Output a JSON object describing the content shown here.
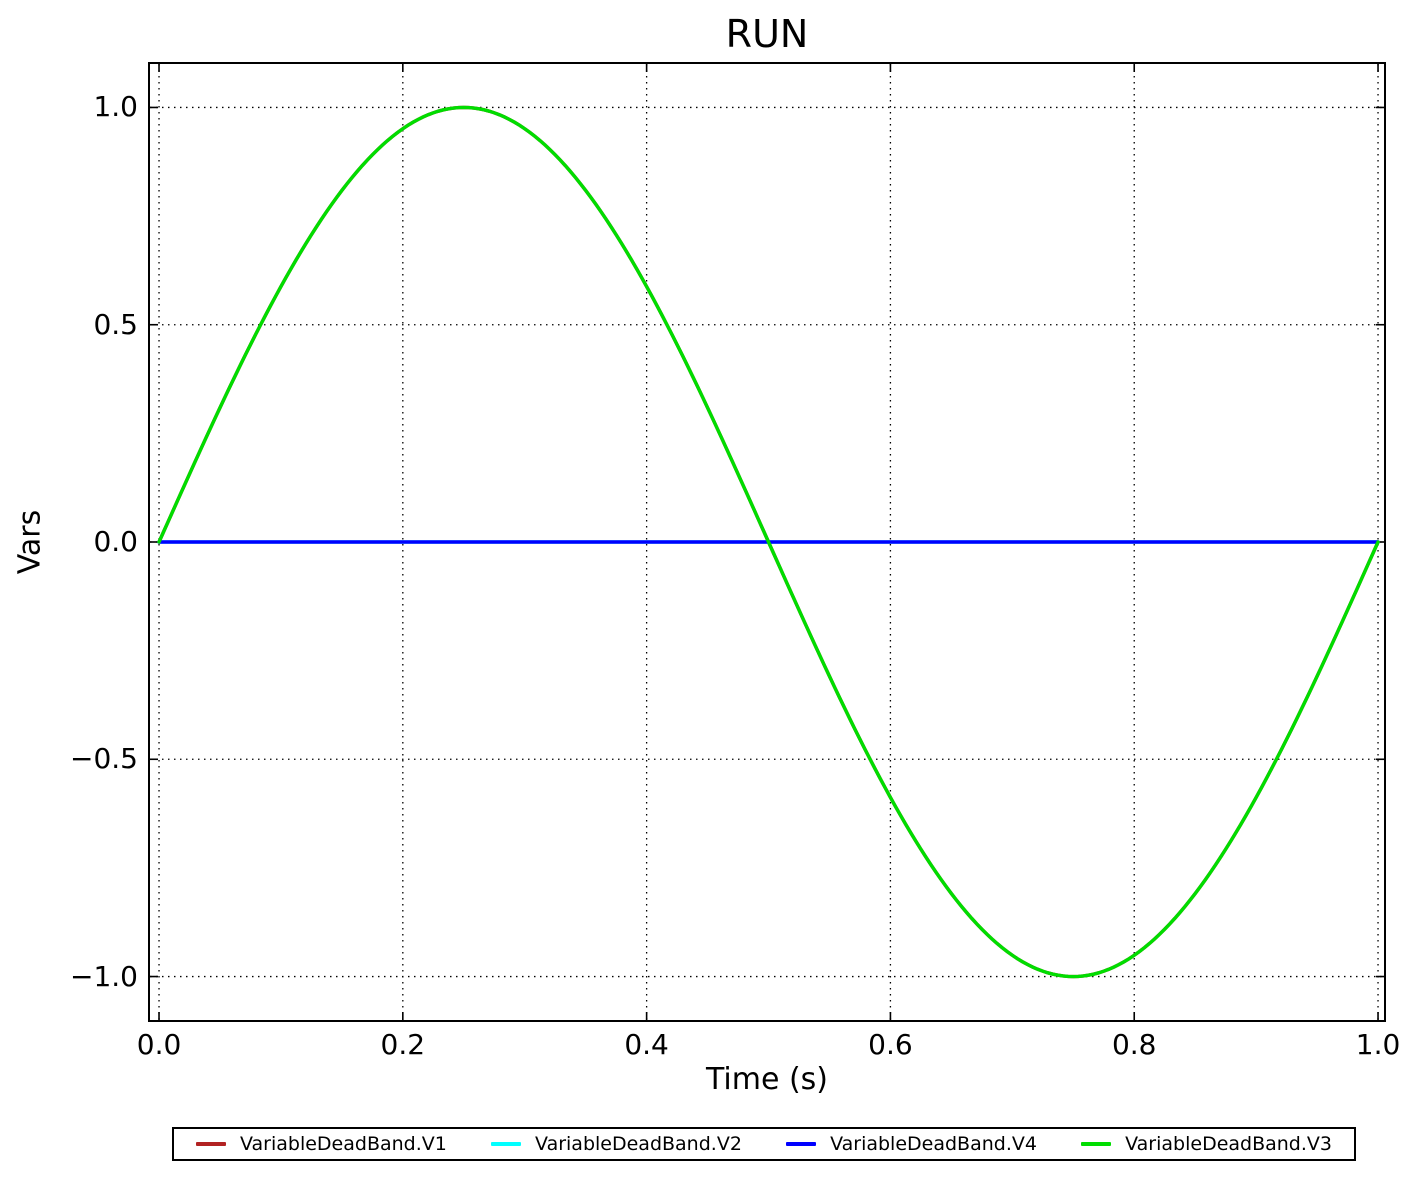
{
  "title": "RUN",
  "axes": {
    "xlabel": "Time (s)",
    "ylabel": "Vars",
    "xlim": [
      -0.0074,
      1.0049
    ],
    "ylim": [
      -1.1,
      1.1
    ],
    "xticks": [
      {
        "v": 0.0,
        "label": "0.0"
      },
      {
        "v": 0.2,
        "label": "0.2"
      },
      {
        "v": 0.4,
        "label": "0.4"
      },
      {
        "v": 0.6,
        "label": "0.6"
      },
      {
        "v": 0.8,
        "label": "0.8"
      },
      {
        "v": 1.0,
        "label": "1.0"
      }
    ],
    "yticks": [
      {
        "v": 1.0,
        "label": "1.0"
      },
      {
        "v": 0.5,
        "label": "0.5"
      },
      {
        "v": 0.0,
        "label": "0.0"
      },
      {
        "v": -0.5,
        "label": "−0.5"
      },
      {
        "v": -1.0,
        "label": "−1.0"
      }
    ]
  },
  "chart_data": {
    "type": "line",
    "title": "RUN",
    "xlabel": "Time (s)",
    "ylabel": "Vars",
    "xlim": [
      0.0,
      1.0
    ],
    "ylim": [
      -1.1,
      1.1
    ],
    "t_range": [
      0.0,
      1.0
    ],
    "grid": "dotted-black-major",
    "legend_position": "bottom-outside",
    "frame_color": "#000000",
    "background_color": "#ffffff",
    "x_samples": [
      0.0,
      0.05,
      0.1,
      0.15,
      0.2,
      0.25,
      0.3,
      0.35,
      0.4,
      0.45,
      0.5,
      0.55,
      0.6,
      0.65,
      0.7,
      0.75,
      0.8,
      0.85,
      0.9,
      0.95,
      1.0
    ],
    "series": [
      {
        "name": "VariableDeadBand.V1",
        "color": "#b22222",
        "generator": {
          "kind": "sine",
          "amplitude": 1,
          "frequency_hz": 1,
          "phase": 0
        },
        "values": [
          0,
          0.309,
          0.5878,
          0.809,
          0.9511,
          1,
          0.9511,
          0.809,
          0.5878,
          0.309,
          0,
          -0.309,
          -0.5878,
          -0.809,
          -0.9511,
          -1,
          -0.9511,
          -0.809,
          -0.5878,
          -0.309,
          0
        ],
        "visibility_note": "drawn first, covered by VariableDeadBand.V3"
      },
      {
        "name": "VariableDeadBand.V2",
        "color": "#00ffff",
        "generator": {
          "kind": "constant",
          "value": 0
        },
        "values": [
          0,
          0,
          0,
          0,
          0,
          0,
          0,
          0,
          0,
          0,
          0,
          0,
          0,
          0,
          0,
          0,
          0,
          0,
          0,
          0,
          0
        ],
        "visibility_note": "drawn second, covered by VariableDeadBand.V4"
      },
      {
        "name": "VariableDeadBand.V4",
        "color": "#0000ff",
        "generator": {
          "kind": "constant",
          "value": 0
        },
        "values": [
          0,
          0,
          0,
          0,
          0,
          0,
          0,
          0,
          0,
          0,
          0,
          0,
          0,
          0,
          0,
          0,
          0,
          0,
          0,
          0,
          0
        ],
        "visibility_note": "visible horizontal line at 0"
      },
      {
        "name": "VariableDeadBand.V3",
        "color": "#00dd00",
        "generator": {
          "kind": "sine",
          "amplitude": 1,
          "frequency_hz": 1,
          "phase": 0
        },
        "values": [
          0,
          0.309,
          0.5878,
          0.809,
          0.9511,
          1,
          0.9511,
          0.809,
          0.5878,
          0.309,
          0,
          -0.309,
          -0.5878,
          -0.809,
          -0.9511,
          -1,
          -0.9511,
          -0.809,
          -0.5878,
          -0.309,
          0
        ],
        "visibility_note": "visible sine wave"
      }
    ],
    "legend": [
      "VariableDeadBand.V1",
      "VariableDeadBand.V2",
      "VariableDeadBand.V4",
      "VariableDeadBand.V3"
    ]
  }
}
